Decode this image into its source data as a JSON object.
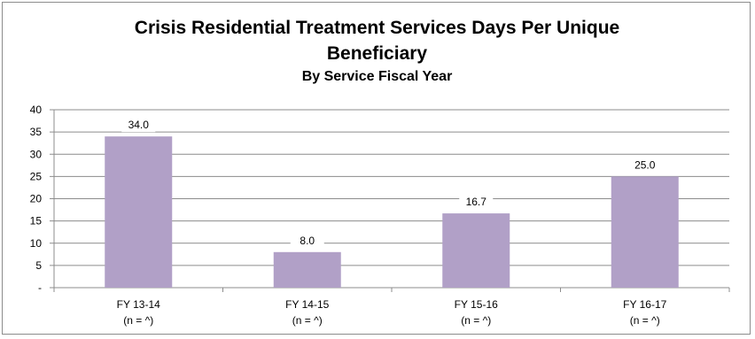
{
  "chart_data": {
    "type": "bar",
    "title": "Crisis Residential Treatment Services Days Per Unique Beneficiary",
    "title_lines": [
      "Crisis Residential Treatment Services Days Per Unique",
      "Beneficiary"
    ],
    "subtitle": "By Service Fiscal Year",
    "xlabel": "",
    "ylabel": "",
    "categories": [
      "FY 13-14",
      "FY 14-15",
      "FY 15-16",
      "FY 16-17"
    ],
    "category_sublabels": [
      "(n = ^)",
      "(n = ^)",
      "(n = ^)",
      "(n = ^)"
    ],
    "values": [
      34.0,
      8.0,
      16.7,
      25.0
    ],
    "data_labels": [
      "34.0",
      "8.0",
      "16.7",
      "25.0"
    ],
    "ylim": [
      0,
      40
    ],
    "yticks": [
      0,
      5,
      10,
      15,
      20,
      25,
      30,
      35,
      40
    ],
    "ytick_labels": [
      "-",
      "5",
      "10",
      "15",
      "20",
      "25",
      "30",
      "35",
      "40"
    ],
    "grid": true,
    "legend": "none",
    "bar_color": "#b1a0c7",
    "grid_color": "#8c8c8c"
  }
}
